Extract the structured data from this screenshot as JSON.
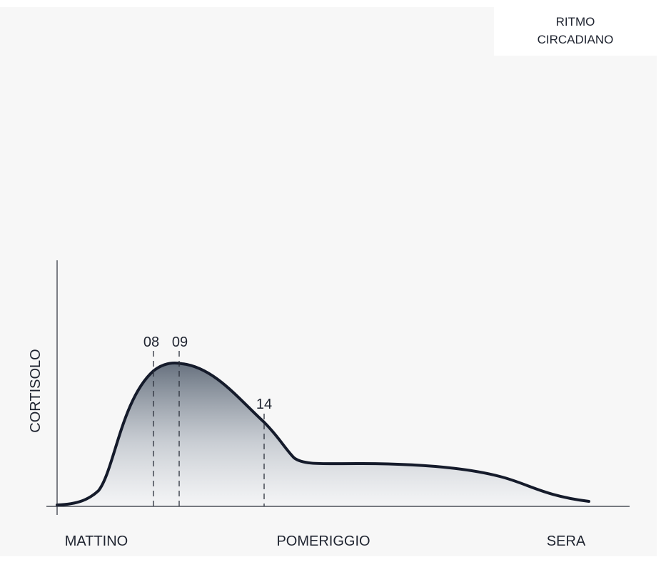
{
  "header": {
    "title_lines": [
      "RITMO",
      "CIRCADIANO"
    ]
  },
  "axes": {
    "y_label": "CORTISOLO",
    "x_labels": [
      "MATTINO",
      "POMERIGGIO",
      "SERA"
    ]
  },
  "markers": [
    "08",
    "09",
    "14"
  ]
}
